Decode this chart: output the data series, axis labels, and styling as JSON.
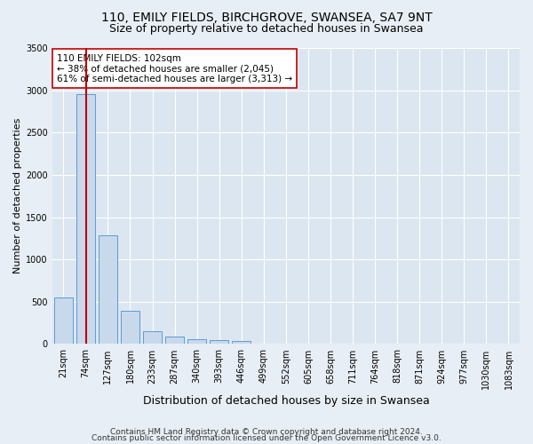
{
  "title": "110, EMILY FIELDS, BIRCHGROVE, SWANSEA, SA7 9NT",
  "subtitle": "Size of property relative to detached houses in Swansea",
  "xlabel": "Distribution of detached houses by size in Swansea",
  "ylabel": "Number of detached properties",
  "footer_line1": "Contains HM Land Registry data © Crown copyright and database right 2024.",
  "footer_line2": "Contains public sector information licensed under the Open Government Licence v3.0.",
  "bin_labels": [
    "21sqm",
    "74sqm",
    "127sqm",
    "180sqm",
    "233sqm",
    "287sqm",
    "340sqm",
    "393sqm",
    "446sqm",
    "499sqm",
    "552sqm",
    "605sqm",
    "658sqm",
    "711sqm",
    "764sqm",
    "818sqm",
    "871sqm",
    "924sqm",
    "977sqm",
    "1030sqm",
    "1083sqm"
  ],
  "bar_heights": [
    550,
    2950,
    1280,
    390,
    155,
    90,
    60,
    50,
    40,
    0,
    0,
    0,
    0,
    0,
    0,
    0,
    0,
    0,
    0,
    0,
    0
  ],
  "bar_color": "#c8d9ec",
  "bar_edge_color": "#5b9bd5",
  "vline_color": "#c00000",
  "annotation_line1": "110 EMILY FIELDS: 102sqm",
  "annotation_line2": "← 38% of detached houses are smaller (2,045)",
  "annotation_line3": "61% of semi-detached houses are larger (3,313) →",
  "annotation_box_color": "#ffffff",
  "annotation_box_edge": "#c00000",
  "ylim": [
    0,
    3500
  ],
  "yticks": [
    0,
    500,
    1000,
    1500,
    2000,
    2500,
    3000,
    3500
  ],
  "background_color": "#e8eef5",
  "plot_bg_color": "#dce6f0",
  "grid_color": "#ffffff",
  "title_fontsize": 10,
  "subtitle_fontsize": 9,
  "ylabel_fontsize": 8,
  "xlabel_fontsize": 9,
  "tick_fontsize": 7,
  "footer_fontsize": 6.5,
  "annotation_fontsize": 7.5
}
